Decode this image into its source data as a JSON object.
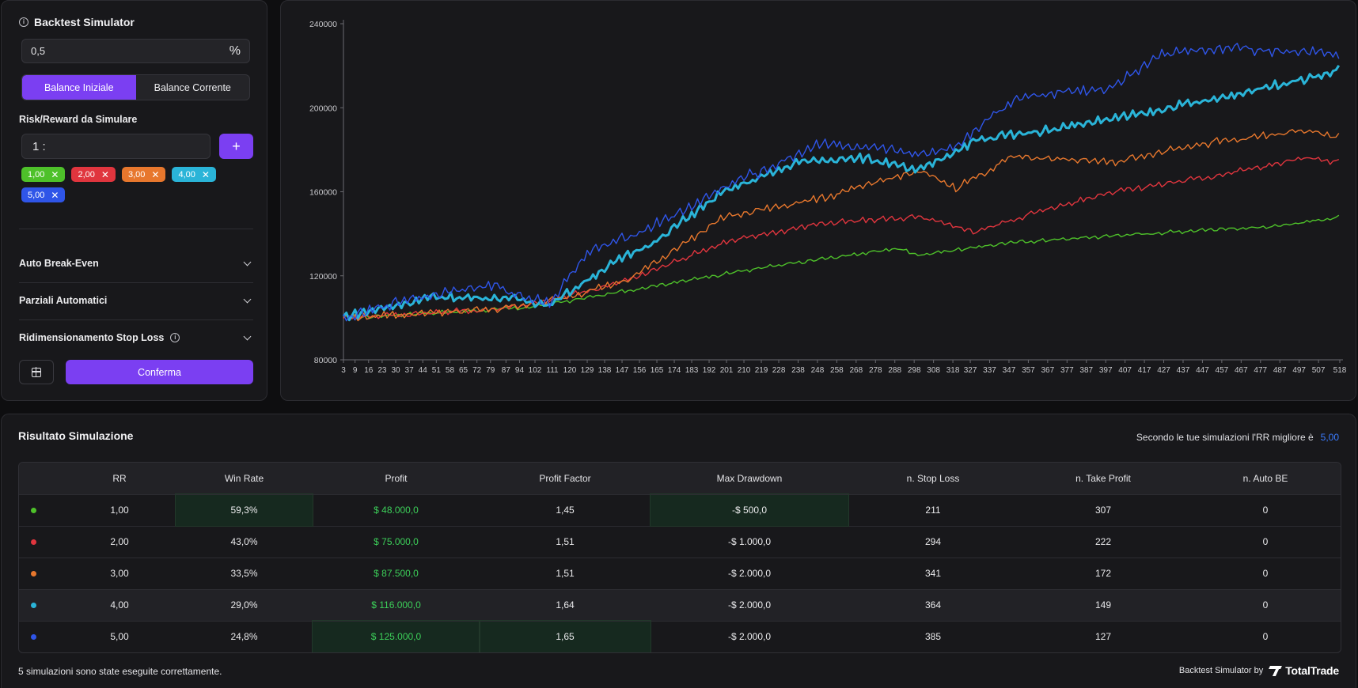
{
  "sidebar": {
    "title": "Backtest Simulator",
    "risk_value": "0,5",
    "risk_unit": "%",
    "balance_tabs": [
      "Balance Iniziale",
      "Balance Corrente"
    ],
    "rr_label": "Risk/Reward da Simulare",
    "rr_prefix": "1 :",
    "add_label": "+",
    "chips": [
      {
        "label": "1,00",
        "color": "#4ec12a"
      },
      {
        "label": "2,00",
        "color": "#e0353e"
      },
      {
        "label": "3,00",
        "color": "#e7772d"
      },
      {
        "label": "4,00",
        "color": "#2ab4d8"
      },
      {
        "label": "5,00",
        "color": "#2f55e8"
      }
    ],
    "chip_remove": "✕",
    "accordions": [
      "Auto Break-Even",
      "Parziali Automatici",
      "Ridimensionamento Stop Loss"
    ],
    "confirm_label": "Conferma"
  },
  "chart_data": {
    "type": "line",
    "title": "",
    "xlabel": "",
    "ylabel": "",
    "ylim": [
      80000,
      240000
    ],
    "y_ticks": [
      80000,
      120000,
      160000,
      200000,
      240000
    ],
    "x_ticks": [
      "3",
      "9",
      "16",
      "23",
      "30",
      "37",
      "44",
      "51",
      "58",
      "65",
      "72",
      "79",
      "87",
      "94",
      "102",
      "111",
      "120",
      "129",
      "138",
      "147",
      "156",
      "165",
      "174",
      "183",
      "192",
      "201",
      "210",
      "219",
      "228",
      "238",
      "248",
      "258",
      "268",
      "278",
      "288",
      "298",
      "308",
      "318",
      "327",
      "337",
      "347",
      "357",
      "367",
      "377",
      "387",
      "397",
      "407",
      "417",
      "427",
      "437",
      "447",
      "457",
      "467",
      "477",
      "487",
      "497",
      "507",
      "518"
    ],
    "x_range": [
      3,
      518
    ],
    "series": [
      {
        "color": "#4ec12a",
        "width": 1.4,
        "trend": [
          [
            3,
            100000
          ],
          [
            100,
            105000
          ],
          [
            150,
            113000
          ],
          [
            200,
            121000
          ],
          [
            250,
            128000
          ],
          [
            290,
            133000
          ],
          [
            300,
            130000
          ],
          [
            350,
            136000
          ],
          [
            400,
            139000
          ],
          [
            450,
            142000
          ],
          [
            480,
            143000
          ],
          [
            518,
            148000
          ]
        ]
      },
      {
        "color": "#e0353e",
        "width": 1.4,
        "trend": [
          [
            3,
            100000
          ],
          [
            80,
            104000
          ],
          [
            110,
            108000
          ],
          [
            150,
            118000
          ],
          [
            200,
            136000
          ],
          [
            250,
            145000
          ],
          [
            300,
            148000
          ],
          [
            330,
            141000
          ],
          [
            360,
            150000
          ],
          [
            400,
            160000
          ],
          [
            450,
            167000
          ],
          [
            500,
            176000
          ],
          [
            518,
            174000
          ]
        ]
      },
      {
        "color": "#e7772d",
        "width": 1.4,
        "trend": [
          [
            3,
            100000
          ],
          [
            80,
            104000
          ],
          [
            110,
            108000
          ],
          [
            150,
            118000
          ],
          [
            200,
            148000
          ],
          [
            250,
            157000
          ],
          [
            300,
            170000
          ],
          [
            320,
            162000
          ],
          [
            350,
            177000
          ],
          [
            400,
            174000
          ],
          [
            440,
            182000
          ],
          [
            500,
            189000
          ],
          [
            518,
            186000
          ]
        ]
      },
      {
        "color": "#2ab4d8",
        "width": 3,
        "trend": [
          [
            3,
            100000
          ],
          [
            50,
            110000
          ],
          [
            80,
            110000
          ],
          [
            110,
            106000
          ],
          [
            140,
            125000
          ],
          [
            170,
            140000
          ],
          [
            200,
            160000
          ],
          [
            240,
            175000
          ],
          [
            270,
            176000
          ],
          [
            300,
            170000
          ],
          [
            330,
            185000
          ],
          [
            360,
            188000
          ],
          [
            400,
            195000
          ],
          [
            450,
            203000
          ],
          [
            480,
            210000
          ],
          [
            518,
            218000
          ]
        ]
      },
      {
        "color": "#2f55e8",
        "width": 1.4,
        "trend": [
          [
            3,
            100000
          ],
          [
            50,
            112000
          ],
          [
            80,
            115000
          ],
          [
            110,
            107000
          ],
          [
            130,
            132000
          ],
          [
            160,
            142000
          ],
          [
            200,
            162000
          ],
          [
            250,
            183000
          ],
          [
            300,
            178000
          ],
          [
            320,
            182000
          ],
          [
            350,
            205000
          ],
          [
            400,
            210000
          ],
          [
            430,
            227000
          ],
          [
            470,
            228000
          ],
          [
            518,
            225000
          ]
        ]
      }
    ]
  },
  "results": {
    "title": "Risultato Simulazione",
    "best_text": "Secondo le tue simulazioni l'RR migliore è",
    "best_value": "5,00",
    "columns": [
      "",
      "RR",
      "Win Rate",
      "Profit",
      "Profit Factor",
      "Max Drawdown",
      "n. Stop Loss",
      "n. Take Profit",
      "n. Auto BE"
    ],
    "rows": [
      {
        "color": "#4ec12a",
        "rr": "1,00",
        "win_rate": "59,3%",
        "profit": "$ 48.000,0",
        "profit_factor": "1,45",
        "max_dd": "-$ 500,0",
        "stop_loss": "211",
        "take_profit": "307",
        "auto_be": "0"
      },
      {
        "color": "#e0353e",
        "rr": "2,00",
        "win_rate": "43,0%",
        "profit": "$ 75.000,0",
        "profit_factor": "1,51",
        "max_dd": "-$ 1.000,0",
        "stop_loss": "294",
        "take_profit": "222",
        "auto_be": "0"
      },
      {
        "color": "#e7772d",
        "rr": "3,00",
        "win_rate": "33,5%",
        "profit": "$ 87.500,0",
        "profit_factor": "1,51",
        "max_dd": "-$ 2.000,0",
        "stop_loss": "341",
        "take_profit": "172",
        "auto_be": "0"
      },
      {
        "color": "#2ab4d8",
        "rr": "4,00",
        "win_rate": "29,0%",
        "profit": "$ 116.000,0",
        "profit_factor": "1,64",
        "max_dd": "-$ 2.000,0",
        "stop_loss": "364",
        "take_profit": "149",
        "auto_be": "0"
      },
      {
        "color": "#2f55e8",
        "rr": "5,00",
        "win_rate": "24,8%",
        "profit": "$ 125.000,0",
        "profit_factor": "1,65",
        "max_dd": "-$ 2.000,0",
        "stop_loss": "385",
        "take_profit": "127",
        "auto_be": "0"
      }
    ],
    "footer_text": "5 simulazioni sono state eseguite correttamente.",
    "footer_by": "Backtest Simulator by",
    "brand": "TotalTrade"
  }
}
